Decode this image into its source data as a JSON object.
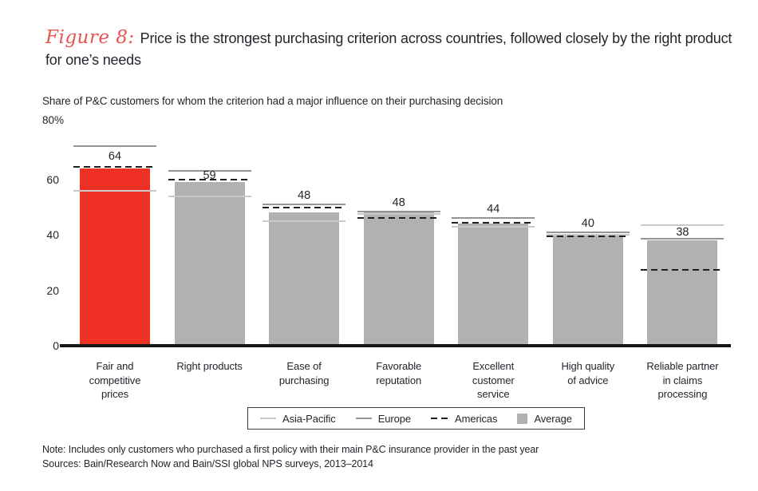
{
  "header": {
    "figure_label": "Figure 8:"
  },
  "chart_data": {
    "type": "bar",
    "title": "Price is the strongest purchasing criterion across countries, followed closely by the right product for one’s needs",
    "subtitle": "Share of P&C customers for whom the criterion had a major influence on their purchasing decision",
    "unit_top_label": "80%",
    "ylim": [
      0,
      80
    ],
    "yticks": [
      0,
      20,
      40,
      60
    ],
    "grid": false,
    "legend_position": "bottom-center",
    "categories": [
      "Fair and\ncompetitive\nprices",
      "Right products",
      "Ease of\npurchasing",
      "Favorable\nreputation",
      "Excellent\ncustomer\nservice",
      "High quality\nof advice",
      "Reliable partner\nin claims\nprocessing"
    ],
    "bar_value_labels": [
      "64",
      "59",
      "48",
      "48",
      "44",
      "40",
      "38"
    ],
    "series": [
      {
        "name": "Average",
        "style": "bar",
        "values": [
          64,
          59,
          48,
          48,
          44,
          40,
          38
        ]
      },
      {
        "name": "Asia-Pacific",
        "style": "solid-line-light",
        "values": [
          56,
          54,
          45,
          47.5,
          43,
          40,
          43.5
        ]
      },
      {
        "name": "Europe",
        "style": "solid-line",
        "values": [
          72,
          63,
          51,
          48.5,
          46,
          41,
          38.5
        ]
      },
      {
        "name": "Americas",
        "style": "dashed-line",
        "values": [
          64.5,
          60,
          50,
          46,
          44.5,
          39.5,
          27.5
        ]
      }
    ],
    "highlight_category_index": 0
  },
  "colors": {
    "highlight_bar": "#ee3124",
    "bar": "#b1b1b3",
    "asia_pacific_line": "#c9c9cb",
    "europe_line": "#949398",
    "americas_line": "#1f1f1f",
    "figure_label_red": "#e9534e",
    "text_dark": "#26242c",
    "axis": "#161616"
  },
  "legend": {
    "items": [
      {
        "label": "Asia-Pacific",
        "swatch": "line-light"
      },
      {
        "label": "Europe",
        "swatch": "line-dark"
      },
      {
        "label": "Americas",
        "swatch": "dash"
      },
      {
        "label": "Average",
        "swatch": "box"
      }
    ]
  },
  "footer": {
    "note": "Note: Includes only customers who purchased a first policy with their main P&C insurance provider in the past year",
    "sources": "Sources: Bain/Research Now and Bain/SSI global NPS surveys, 2013–2014"
  }
}
